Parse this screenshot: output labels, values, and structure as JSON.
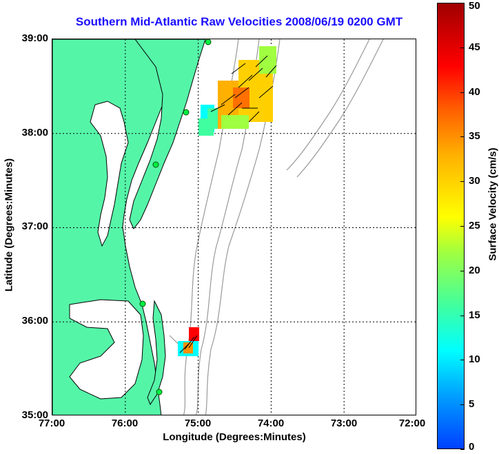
{
  "title": "Southern Mid-Atlantic Raw Velocities 2008/06/19 0200 GMT",
  "x_axis": {
    "label": "Longitude (Degrees:Minutes)",
    "ticks": [
      "77:00",
      "76:00",
      "75:00",
      "74:00",
      "73:00",
      "72:00"
    ]
  },
  "y_axis": {
    "label": "Latitude (Degrees:Minutes)",
    "ticks": [
      "39:00",
      "38:00",
      "37:00",
      "36:00",
      "35:00"
    ]
  },
  "colorbar": {
    "label": "Surface Velocity (cm/s)",
    "ticks": [
      "50",
      "45",
      "40",
      "35",
      "30",
      "25",
      "20",
      "15",
      "10",
      "5",
      "0"
    ],
    "range": [
      0,
      50
    ]
  },
  "map": {
    "lon_range": [
      -77,
      -72
    ],
    "lat_range": [
      35,
      39
    ],
    "land_color": "#55f5a8",
    "bathymetry_color": "#999999",
    "grid": true
  },
  "icons": {
    "radar_site": "green-circle-icon",
    "velocity_vector": "arrow-icon"
  }
}
